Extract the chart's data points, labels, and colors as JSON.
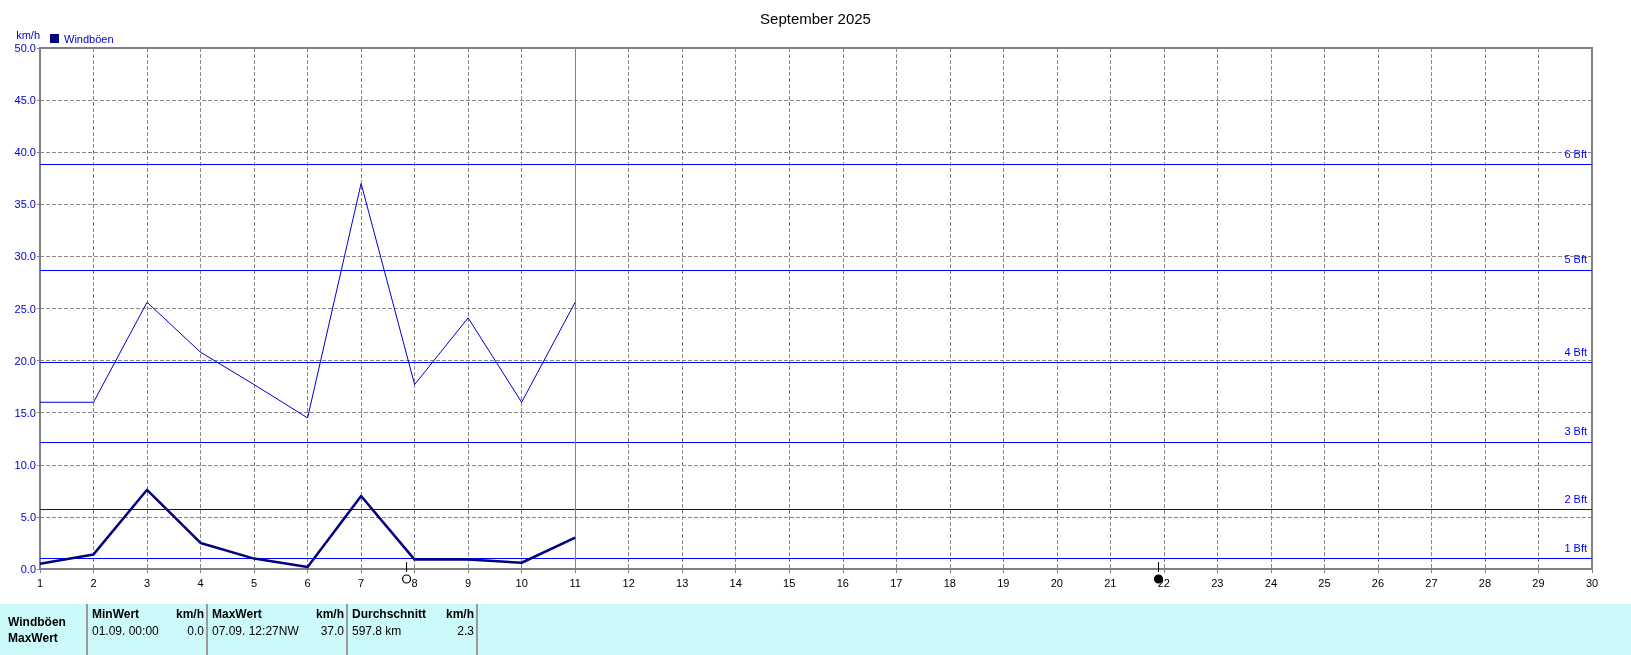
{
  "chart_data": {
    "type": "line",
    "title": "September 2025",
    "ylabel": "km/h",
    "x": [
      1,
      2,
      3,
      4,
      5,
      6,
      7,
      8,
      9,
      10,
      11
    ],
    "series": [
      {
        "color": "#0000cc",
        "values": [
          16.0,
          16.0,
          25.6,
          20.8,
          17.7,
          14.5,
          37.0,
          17.7,
          24.1,
          16.0,
          25.6
        ]
      },
      {
        "name": "Windböen",
        "color": "#000080",
        "values": [
          0.5,
          1.4,
          7.6,
          2.5,
          1.0,
          0.2,
          7.0,
          0.9,
          0.9,
          0.6,
          3.0
        ]
      }
    ],
    "xlim": [
      1,
      30
    ],
    "xticks": [
      1,
      2,
      3,
      4,
      5,
      6,
      7,
      8,
      9,
      10,
      11,
      12,
      13,
      14,
      15,
      16,
      17,
      18,
      19,
      20,
      21,
      22,
      23,
      24,
      25,
      26,
      27,
      28,
      29,
      30
    ],
    "ylim": [
      0,
      50
    ],
    "yticks": [
      {
        "value": 0,
        "label": "0.0"
      },
      {
        "value": 5,
        "label": "5.0"
      },
      {
        "value": 10,
        "label": "10.0"
      },
      {
        "value": 15,
        "label": "15.0"
      },
      {
        "value": 20,
        "label": "20.0"
      },
      {
        "value": 25,
        "label": "25.0"
      },
      {
        "value": 30,
        "label": "30.0"
      },
      {
        "value": 35,
        "label": "35.0"
      },
      {
        "value": 40,
        "label": "40.0"
      },
      {
        "value": 45,
        "label": "45.0"
      },
      {
        "value": 50,
        "label": "50.0"
      }
    ],
    "ref_lines": [
      {
        "axis": "y",
        "value": 1.0,
        "label": "1 Bft",
        "color": "#0000ff"
      },
      {
        "axis": "y",
        "value": 5.7,
        "label": "2 Bft",
        "color": "#0000ff"
      },
      {
        "axis": "y",
        "value": 12.2,
        "label": "3 Bft",
        "color": "#0000ff"
      },
      {
        "axis": "y",
        "value": 19.8,
        "label": "4 Bft",
        "color": "#0000ff"
      },
      {
        "axis": "y",
        "value": 28.7,
        "label": "5 Bft",
        "color": "#0000ff"
      },
      {
        "axis": "y",
        "value": 38.8,
        "label": "6 Bft",
        "color": "#0000ff"
      },
      {
        "axis": "x",
        "value": 11,
        "color": "#808080"
      }
    ],
    "annotations": [
      "Windböen",
      "MaxWert",
      "MinWert",
      "km/h",
      "01.09.  00:00",
      "0.0",
      "MaxWert",
      "km/h",
      "07.09.  12:27NW",
      "37.0",
      "Durchschnitt",
      "km/h",
      "597.8 km",
      "2.3"
    ],
    "grid": true,
    "legend": "top left",
    "marker": "none",
    "line_style": "solid"
  }
}
